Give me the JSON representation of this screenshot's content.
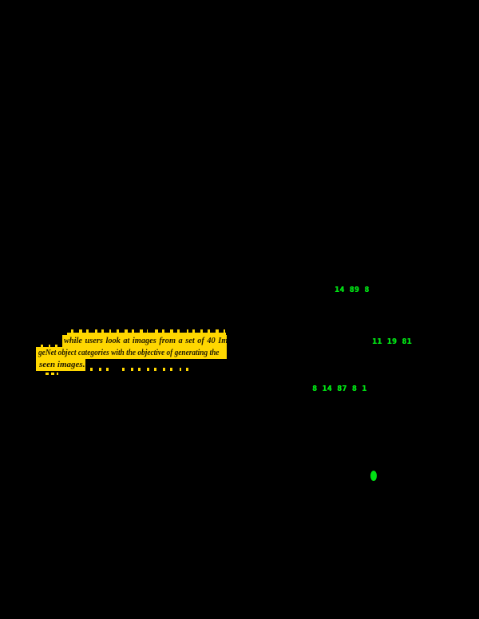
{
  "document": {
    "background_color": "#000000",
    "highlight": {
      "highlight_color": "#ffd700",
      "text_color": "#221a00",
      "lines": [
        "while users look at images from a set of 40 Ima-",
        "geNet object categories with the objective of generating the",
        "seen images."
      ]
    },
    "green_annotations": {
      "color": "#00e114",
      "labels": [
        "14 89 8",
        "11 19 81",
        "8 14 87 8 1"
      ],
      "dot": "green-dot"
    }
  }
}
